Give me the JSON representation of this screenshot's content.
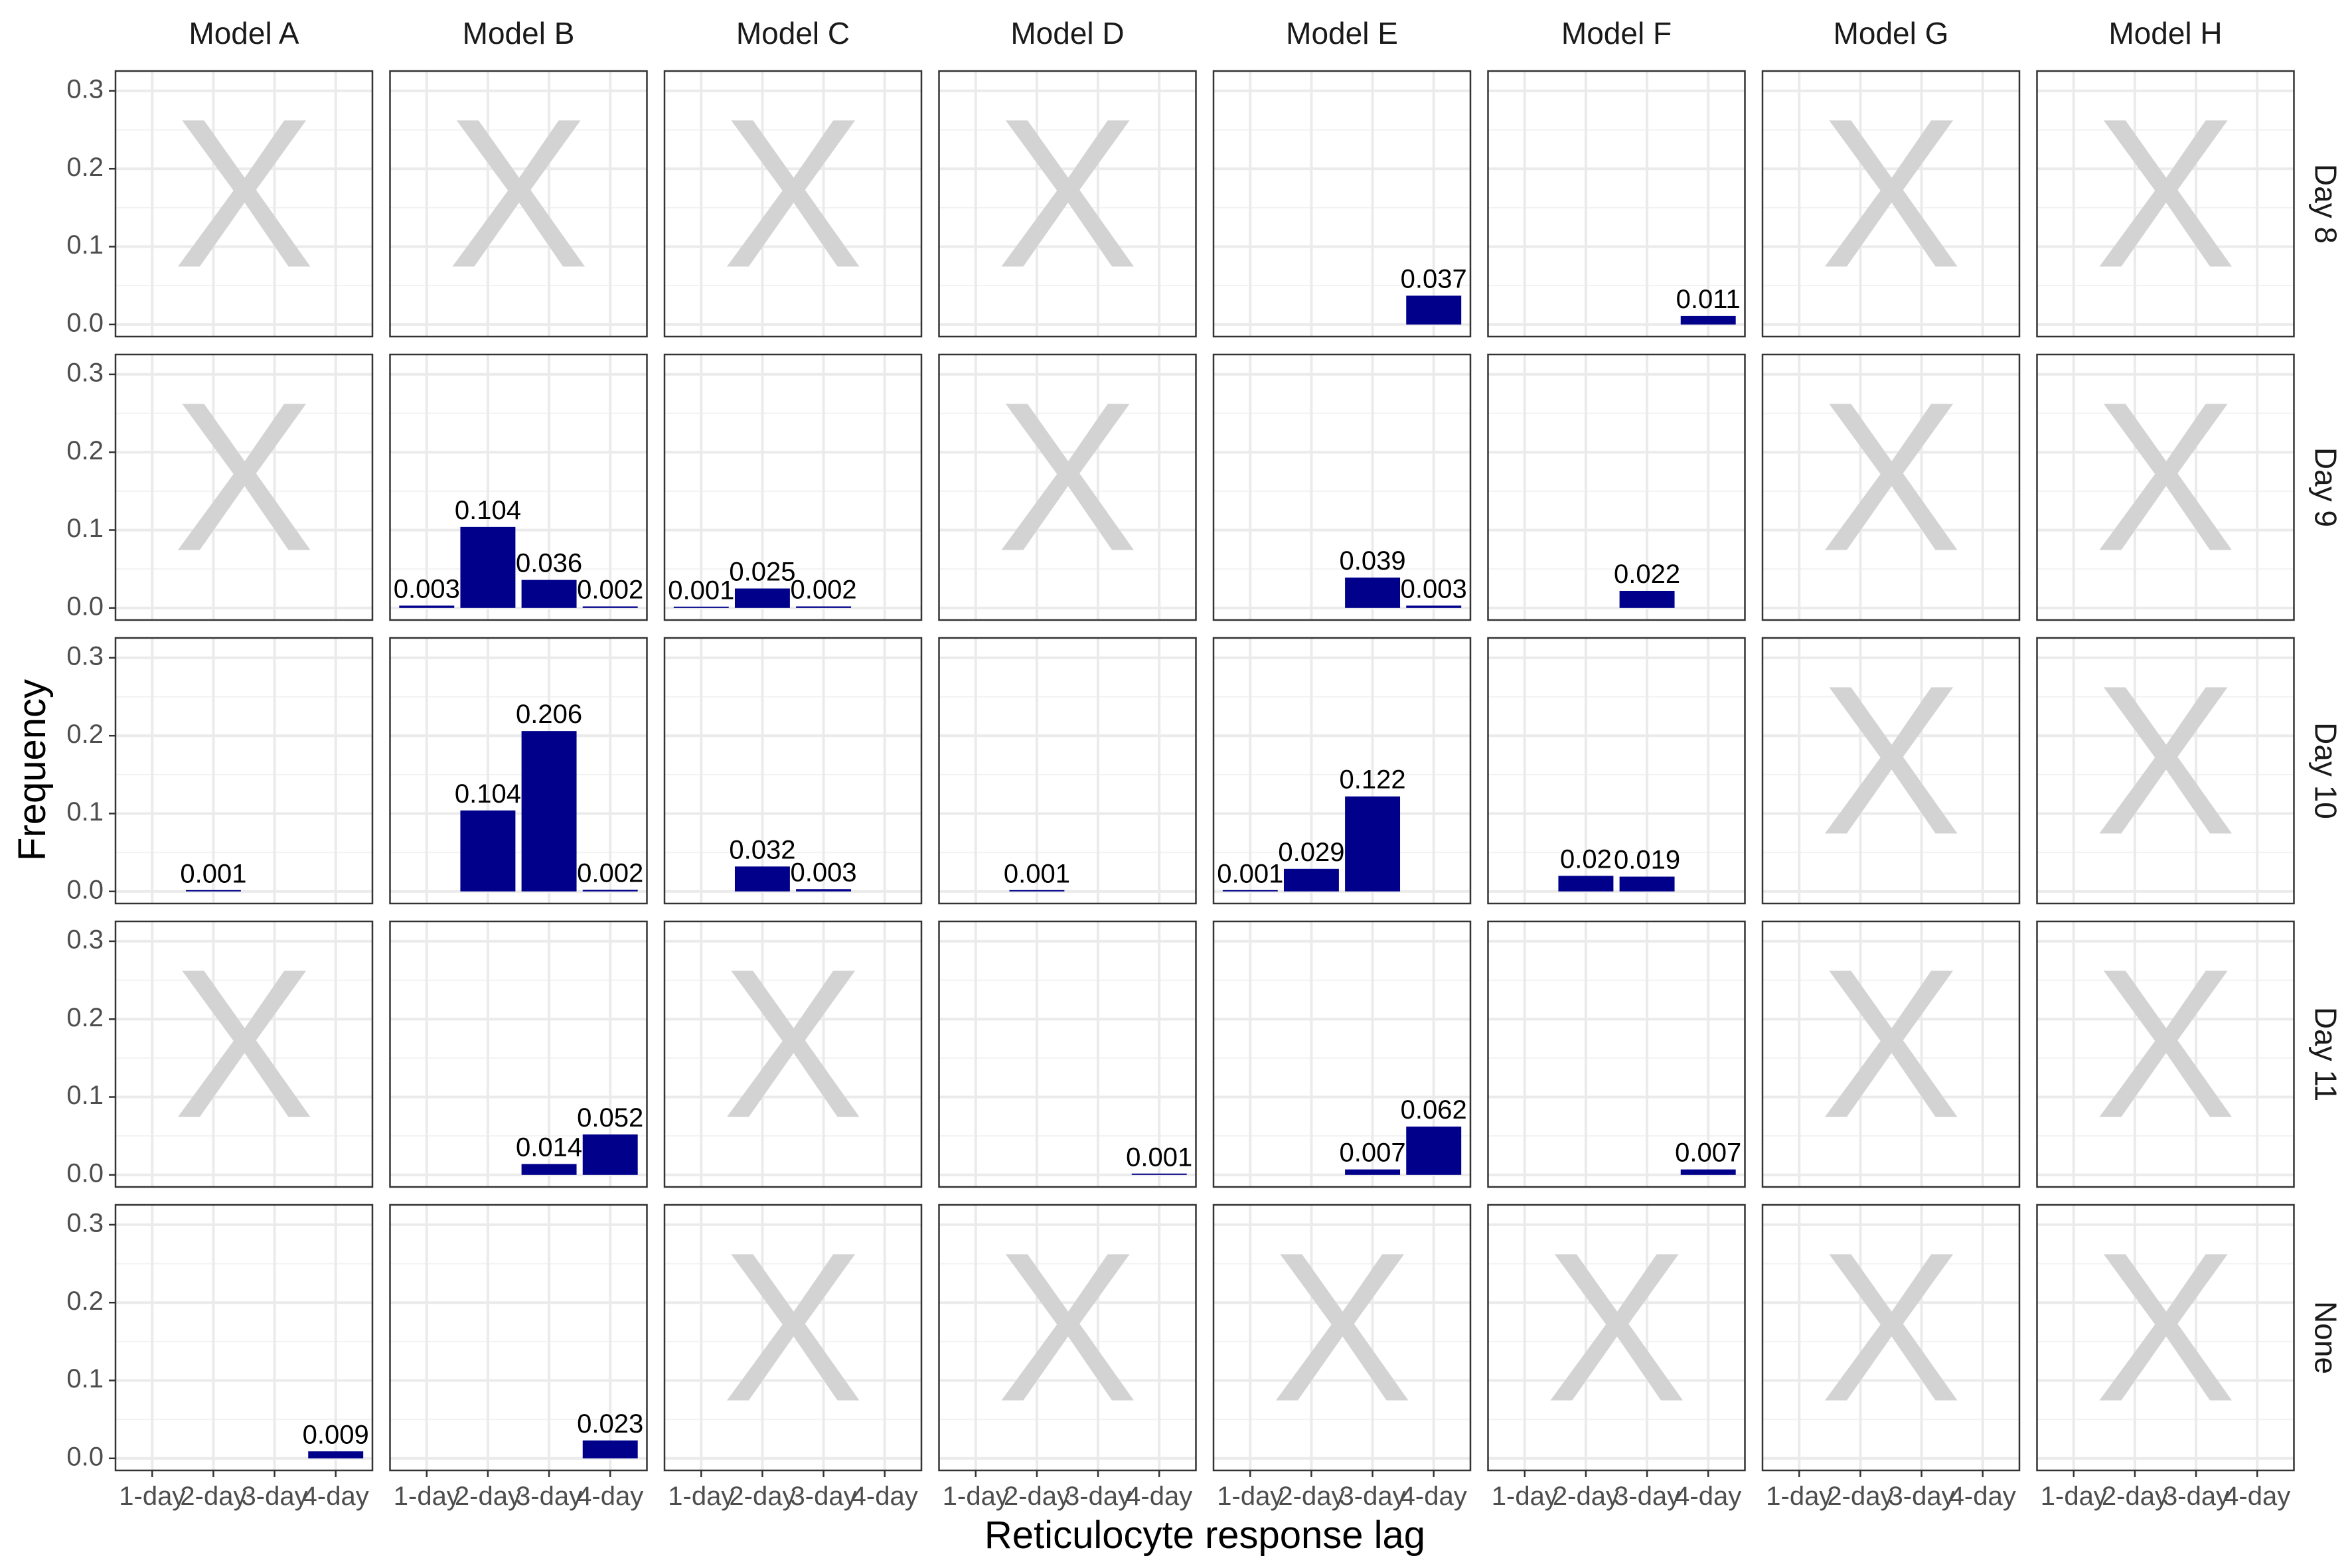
{
  "chart_data": {
    "type": "bar",
    "xlabel": "Reticulocyte response lag",
    "ylabel": "Frequency",
    "columns": [
      "Model A",
      "Model B",
      "Model C",
      "Model D",
      "Model E",
      "Model F",
      "Model G",
      "Model H"
    ],
    "rows": [
      "Day 8",
      "Day 9",
      "Day 10",
      "Day 11",
      "None"
    ],
    "categories": [
      "1-day",
      "2-day",
      "3-day",
      "4-day"
    ],
    "ylim": [
      0,
      0.31
    ],
    "y_ticks": [
      0.0,
      0.1,
      0.2,
      0.3
    ],
    "y_tick_labels": [
      "0.0",
      "0.1",
      "0.2",
      "0.3"
    ],
    "grid": true,
    "bar_color": "#00008B",
    "empty_marker": "X",
    "empty_marker_color": "#D3D3D3",
    "panels": [
      {
        "row": "Day 8",
        "column": "Model A",
        "empty": true,
        "bars": []
      },
      {
        "row": "Day 8",
        "column": "Model B",
        "empty": true,
        "bars": []
      },
      {
        "row": "Day 8",
        "column": "Model C",
        "empty": true,
        "bars": []
      },
      {
        "row": "Day 8",
        "column": "Model D",
        "empty": true,
        "bars": []
      },
      {
        "row": "Day 8",
        "column": "Model E",
        "empty": false,
        "bars": [
          {
            "category": "4-day",
            "value": 0.037,
            "label": "0.037"
          }
        ]
      },
      {
        "row": "Day 8",
        "column": "Model F",
        "empty": false,
        "bars": [
          {
            "category": "4-day",
            "value": 0.011,
            "label": "0.011"
          }
        ]
      },
      {
        "row": "Day 8",
        "column": "Model G",
        "empty": true,
        "bars": []
      },
      {
        "row": "Day 8",
        "column": "Model H",
        "empty": true,
        "bars": []
      },
      {
        "row": "Day 9",
        "column": "Model A",
        "empty": true,
        "bars": []
      },
      {
        "row": "Day 9",
        "column": "Model B",
        "empty": false,
        "bars": [
          {
            "category": "1-day",
            "value": 0.003,
            "label": "0.003"
          },
          {
            "category": "2-day",
            "value": 0.104,
            "label": "0.104"
          },
          {
            "category": "3-day",
            "value": 0.036,
            "label": "0.036"
          },
          {
            "category": "4-day",
            "value": 0.002,
            "label": "0.002"
          }
        ]
      },
      {
        "row": "Day 9",
        "column": "Model C",
        "empty": false,
        "bars": [
          {
            "category": "1-day",
            "value": 0.001,
            "label": "0.001"
          },
          {
            "category": "2-day",
            "value": 0.025,
            "label": "0.025"
          },
          {
            "category": "3-day",
            "value": 0.002,
            "label": "0.002"
          }
        ]
      },
      {
        "row": "Day 9",
        "column": "Model D",
        "empty": true,
        "bars": []
      },
      {
        "row": "Day 9",
        "column": "Model E",
        "empty": false,
        "bars": [
          {
            "category": "3-day",
            "value": 0.039,
            "label": "0.039"
          },
          {
            "category": "4-day",
            "value": 0.003,
            "label": "0.003"
          }
        ]
      },
      {
        "row": "Day 9",
        "column": "Model F",
        "empty": false,
        "bars": [
          {
            "category": "3-day",
            "value": 0.022,
            "label": "0.022"
          }
        ]
      },
      {
        "row": "Day 9",
        "column": "Model G",
        "empty": true,
        "bars": []
      },
      {
        "row": "Day 9",
        "column": "Model H",
        "empty": true,
        "bars": []
      },
      {
        "row": "Day 10",
        "column": "Model A",
        "empty": false,
        "bars": [
          {
            "category": "2-day",
            "value": 0.001,
            "label": "0.001"
          }
        ]
      },
      {
        "row": "Day 10",
        "column": "Model B",
        "empty": false,
        "bars": [
          {
            "category": "2-day",
            "value": 0.104,
            "label": "0.104"
          },
          {
            "category": "3-day",
            "value": 0.206,
            "label": "0.206"
          },
          {
            "category": "4-day",
            "value": 0.002,
            "label": "0.002"
          }
        ]
      },
      {
        "row": "Day 10",
        "column": "Model C",
        "empty": false,
        "bars": [
          {
            "category": "2-day",
            "value": 0.032,
            "label": "0.032"
          },
          {
            "category": "3-day",
            "value": 0.003,
            "label": "0.003"
          }
        ]
      },
      {
        "row": "Day 10",
        "column": "Model D",
        "empty": false,
        "bars": [
          {
            "category": "2-day",
            "value": 0.001,
            "label": "0.001"
          }
        ]
      },
      {
        "row": "Day 10",
        "column": "Model E",
        "empty": false,
        "bars": [
          {
            "category": "1-day",
            "value": 0.001,
            "label": "0.001"
          },
          {
            "category": "2-day",
            "value": 0.029,
            "label": "0.029"
          },
          {
            "category": "3-day",
            "value": 0.122,
            "label": "0.122"
          }
        ]
      },
      {
        "row": "Day 10",
        "column": "Model F",
        "empty": false,
        "bars": [
          {
            "category": "2-day",
            "value": 0.02,
            "label": "0.02"
          },
          {
            "category": "3-day",
            "value": 0.019,
            "label": "0.019"
          }
        ]
      },
      {
        "row": "Day 10",
        "column": "Model G",
        "empty": true,
        "bars": []
      },
      {
        "row": "Day 10",
        "column": "Model H",
        "empty": true,
        "bars": []
      },
      {
        "row": "Day 11",
        "column": "Model A",
        "empty": true,
        "bars": []
      },
      {
        "row": "Day 11",
        "column": "Model B",
        "empty": false,
        "bars": [
          {
            "category": "3-day",
            "value": 0.014,
            "label": "0.014"
          },
          {
            "category": "4-day",
            "value": 0.052,
            "label": "0.052"
          }
        ]
      },
      {
        "row": "Day 11",
        "column": "Model C",
        "empty": true,
        "bars": []
      },
      {
        "row": "Day 11",
        "column": "Model D",
        "empty": false,
        "bars": [
          {
            "category": "4-day",
            "value": 0.001,
            "label": "0.001"
          }
        ]
      },
      {
        "row": "Day 11",
        "column": "Model E",
        "empty": false,
        "bars": [
          {
            "category": "3-day",
            "value": 0.007,
            "label": "0.007"
          },
          {
            "category": "4-day",
            "value": 0.062,
            "label": "0.062"
          }
        ]
      },
      {
        "row": "Day 11",
        "column": "Model F",
        "empty": false,
        "bars": [
          {
            "category": "4-day",
            "value": 0.007,
            "label": "0.007"
          }
        ]
      },
      {
        "row": "Day 11",
        "column": "Model G",
        "empty": true,
        "bars": []
      },
      {
        "row": "Day 11",
        "column": "Model H",
        "empty": true,
        "bars": []
      },
      {
        "row": "None",
        "column": "Model A",
        "empty": false,
        "bars": [
          {
            "category": "4-day",
            "value": 0.009,
            "label": "0.009"
          }
        ]
      },
      {
        "row": "None",
        "column": "Model B",
        "empty": false,
        "bars": [
          {
            "category": "4-day",
            "value": 0.023,
            "label": "0.023"
          }
        ]
      },
      {
        "row": "None",
        "column": "Model C",
        "empty": true,
        "bars": []
      },
      {
        "row": "None",
        "column": "Model D",
        "empty": true,
        "bars": []
      },
      {
        "row": "None",
        "column": "Model E",
        "empty": true,
        "bars": []
      },
      {
        "row": "None",
        "column": "Model F",
        "empty": true,
        "bars": []
      },
      {
        "row": "None",
        "column": "Model G",
        "empty": true,
        "bars": []
      },
      {
        "row": "None",
        "column": "Model H",
        "empty": true,
        "bars": []
      }
    ]
  }
}
